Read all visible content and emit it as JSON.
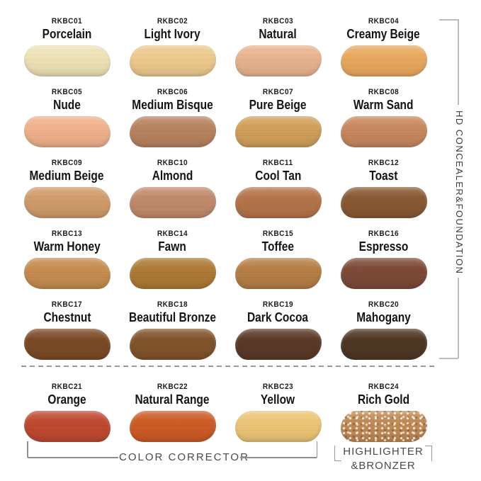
{
  "groups": {
    "hd_concealer_foundation": {
      "label": "HD CONCEALER&FOUNDATION"
    },
    "color_corrector": {
      "label": "COLOR CORRECTOR"
    },
    "highlighter_bronzer": {
      "line1": "HIGHLIGHTER",
      "line2": "&BRONZER"
    }
  },
  "swatches": [
    {
      "code": "RKBC01",
      "name": "Porcelain",
      "color": "#eee2b6"
    },
    {
      "code": "RKBC02",
      "name": "Light Ivory",
      "color": "#edca8d"
    },
    {
      "code": "RKBC03",
      "name": "Natural",
      "color": "#e9b48f"
    },
    {
      "code": "RKBC04",
      "name": "Creamy Beige",
      "color": "#e9a95f"
    },
    {
      "code": "RKBC05",
      "name": "Nude",
      "color": "#f0b28c"
    },
    {
      "code": "RKBC06",
      "name": "Medium Bisque",
      "color": "#b8835f"
    },
    {
      "code": "RKBC07",
      "name": "Pure Beige",
      "color": "#d1a05b"
    },
    {
      "code": "RKBC08",
      "name": "Warm Sand",
      "color": "#c8885f"
    },
    {
      "code": "RKBC09",
      "name": "Medium Beige",
      "color": "#d09c6b"
    },
    {
      "code": "RKBC10",
      "name": "Almond",
      "color": "#c18b6c"
    },
    {
      "code": "RKBC11",
      "name": "Cool Tan",
      "color": "#b5754a"
    },
    {
      "code": "RKBC12",
      "name": "Toast",
      "color": "#8a5a33"
    },
    {
      "code": "RKBC13",
      "name": "Warm Honey",
      "color": "#c68d50"
    },
    {
      "code": "RKBC14",
      "name": "Fawn",
      "color": "#ae7b35"
    },
    {
      "code": "RKBC15",
      "name": "Toffee",
      "color": "#b67f46"
    },
    {
      "code": "RKBC16",
      "name": "Espresso",
      "color": "#7d4a37"
    },
    {
      "code": "RKBC17",
      "name": "Chestnut",
      "color": "#7b4b27"
    },
    {
      "code": "RKBC18",
      "name": "Beautiful Bronze",
      "color": "#82542c"
    },
    {
      "code": "RKBC19",
      "name": "Dark Cocoa",
      "color": "#5c3a28"
    },
    {
      "code": "RKBC20",
      "name": "Mahogany",
      "color": "#4f3824"
    },
    {
      "code": "RKBC21",
      "name": "Orange",
      "color": "#bf4a30"
    },
    {
      "code": "RKBC22",
      "name": "Natural Range",
      "color": "#cd5c26"
    },
    {
      "code": "RKBC23",
      "name": "Yellow",
      "color": "#edc677"
    },
    {
      "code": "RKBC24",
      "name": "Rich Gold",
      "color": "#c08a55"
    }
  ]
}
